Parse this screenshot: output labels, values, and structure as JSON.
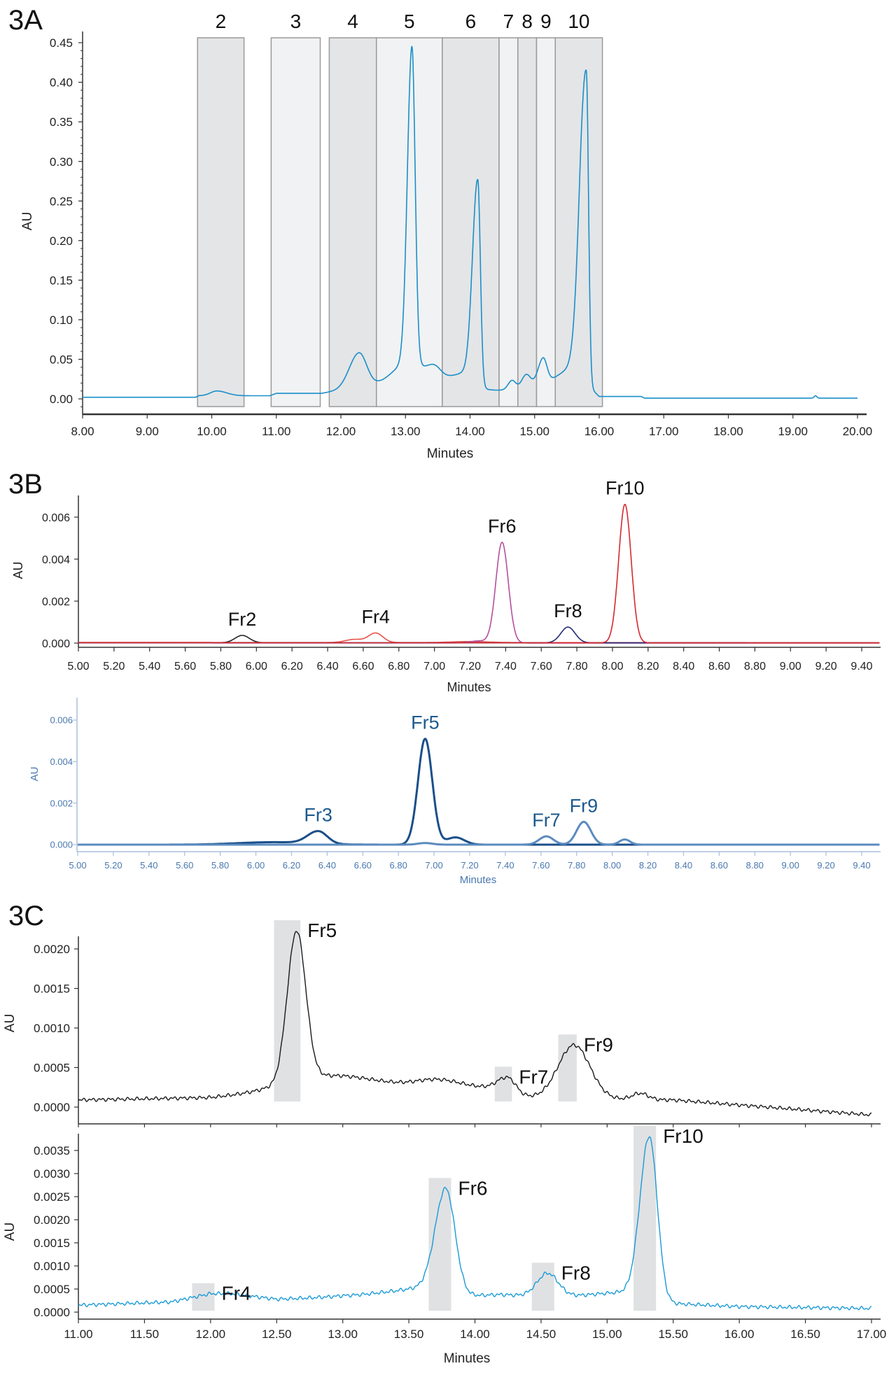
{
  "chart_data": [
    {
      "type": "line",
      "title": "3A",
      "xlabel": "Minutes",
      "ylabel": "AU",
      "xlim": [
        8,
        20
      ],
      "ylim": [
        0,
        0.45
      ],
      "xticks": [
        "8.00",
        "9.00",
        "10.00",
        "11.00",
        "12.00",
        "13.00",
        "14.00",
        "15.00",
        "16.00",
        "17.00",
        "18.00",
        "19.00",
        "20.00"
      ],
      "yticks": [
        "0.00",
        "0.05",
        "0.10",
        "0.15",
        "0.20",
        "0.25",
        "0.30",
        "0.35",
        "0.40",
        "0.45"
      ],
      "fractions": [
        {
          "label": "2",
          "range": [
            9.78,
            10.5
          ],
          "shade": "#e4e5e7"
        },
        {
          "label": "3",
          "range": [
            10.92,
            11.68
          ],
          "shade": "#f1f2f3"
        },
        {
          "label": "4",
          "range": [
            11.82,
            12.55
          ],
          "shade": "#e4e5e7"
        },
        {
          "label": "5",
          "range": [
            12.55,
            13.57
          ],
          "shade": "#f1f2f3"
        },
        {
          "label": "6",
          "range": [
            13.57,
            14.45
          ],
          "shade": "#e4e5e7"
        },
        {
          "label": "7",
          "range": [
            14.45,
            14.74
          ],
          "shade": "#f1f2f3"
        },
        {
          "label": "8",
          "range": [
            14.74,
            15.03
          ],
          "shade": "#e4e5e7"
        },
        {
          "label": "9",
          "range": [
            15.03,
            15.32
          ],
          "shade": "#f1f2f3"
        },
        {
          "label": "10",
          "range": [
            15.32,
            16.05
          ],
          "shade": "#e4e5e7"
        }
      ],
      "series": [
        {
          "color": "#1a8fc9",
          "baseline": [
            [
              8,
              0.002
            ],
            [
              9.75,
              0.002
            ],
            [
              9.8,
              0.004
            ],
            [
              10.9,
              0.004
            ],
            [
              11.0,
              0.007
            ],
            [
              11.7,
              0.007
            ],
            [
              11.85,
              0.009
            ],
            [
              12.6,
              0.016
            ],
            [
              13.5,
              0.015
            ],
            [
              14.4,
              0.011
            ],
            [
              15.9,
              0.011
            ],
            [
              16.0,
              0.003
            ],
            [
              16.65,
              0.003
            ],
            [
              16.7,
              0.001
            ],
            [
              20,
              0.001
            ]
          ],
          "peaks": [
            [
              10.08,
              0.006,
              0.1,
              0.15
            ],
            [
              12.28,
              0.045,
              0.15,
              0.12
            ],
            [
              13.1,
              0.4,
              0.07,
              0.05
            ],
            [
              13.05,
              0.03,
              0.25,
              0.3
            ],
            [
              13.45,
              0.012,
              0.1,
              0.1
            ],
            [
              14.12,
              0.255,
              0.08,
              0.04
            ],
            [
              14.0,
              0.02,
              0.3,
              0.1
            ],
            [
              14.65,
              0.012,
              0.06,
              0.06
            ],
            [
              14.87,
              0.018,
              0.07,
              0.07
            ],
            [
              15.13,
              0.033,
              0.08,
              0.06
            ],
            [
              15.8,
              0.4,
              0.1,
              0.035
            ],
            [
              15.7,
              0.03,
              0.35,
              0.05
            ],
            [
              19.35,
              0.003,
              0.02,
              0.02
            ]
          ]
        }
      ],
      "labels": []
    },
    {
      "type": "line",
      "title": "3B",
      "xlabel": "Minutes",
      "ylabel": "AU",
      "xlim": [
        5,
        9.5
      ],
      "ylim": [
        0,
        0.006
      ],
      "xticks": [
        "5.00",
        "5.20",
        "5.40",
        "5.60",
        "5.80",
        "6.00",
        "6.20",
        "6.40",
        "6.60",
        "6.80",
        "7.00",
        "7.20",
        "7.40",
        "7.60",
        "7.80",
        "8.00",
        "8.20",
        "8.40",
        "8.60",
        "8.80",
        "9.00",
        "9.20",
        "9.40"
      ],
      "yticks": [
        "0.000",
        "0.002",
        "0.004",
        "0.006"
      ],
      "fractions": [],
      "series": [
        {
          "color": "#222222",
          "baseline": [
            [
              5,
              2e-05
            ],
            [
              9.5,
              1e-05
            ]
          ],
          "peaks": [
            [
              5.92,
              0.00035,
              0.04,
              0.04
            ]
          ]
        },
        {
          "color": "#e8514a",
          "baseline": [
            [
              5,
              3e-05
            ],
            [
              9.5,
              2e-05
            ]
          ],
          "peaks": [
            [
              6.55,
              0.00015,
              0.05,
              0.05
            ],
            [
              6.67,
              0.00045,
              0.04,
              0.04
            ],
            [
              7.2,
              5e-05,
              0.1,
              0.1
            ]
          ]
        },
        {
          "color": "#b5509e",
          "baseline": [
            [
              5,
              1e-05
            ],
            [
              9.5,
              0.0
            ]
          ],
          "peaks": [
            [
              7.38,
              0.0048,
              0.035,
              0.035
            ],
            [
              7.25,
              0.0001,
              0.05,
              0.05
            ]
          ]
        },
        {
          "color": "#232c74",
          "baseline": [
            [
              5,
              2e-05
            ],
            [
              9.5,
              1e-05
            ]
          ],
          "peaks": [
            [
              7.75,
              0.00075,
              0.04,
              0.04
            ]
          ]
        },
        {
          "color": "#d42a2f",
          "baseline": [
            [
              5,
              2e-05
            ],
            [
              9.5,
              1e-05
            ]
          ],
          "peaks": [
            [
              8.07,
              0.0066,
              0.035,
              0.035
            ]
          ]
        }
      ],
      "labels": [
        {
          "text": "Fr2",
          "x": 5.92,
          "series": 0
        },
        {
          "text": "Fr4",
          "x": 6.67,
          "series": 1
        },
        {
          "text": "Fr6",
          "x": 7.38,
          "series": 2
        },
        {
          "text": "Fr8",
          "x": 7.75,
          "series": 3
        },
        {
          "text": "Fr10",
          "x": 8.07,
          "series": 4
        }
      ]
    },
    {
      "type": "line",
      "title": "",
      "xlabel": "Minutes",
      "ylabel": "AU",
      "xlim": [
        5,
        9.5
      ],
      "ylim": [
        0,
        0.006
      ],
      "xticks": [
        "5.00",
        "5.20",
        "5.40",
        "5.60",
        "5.80",
        "6.00",
        "6.20",
        "6.40",
        "6.60",
        "6.80",
        "7.00",
        "7.20",
        "7.40",
        "7.60",
        "7.80",
        "8.00",
        "8.20",
        "8.40",
        "8.60",
        "8.80",
        "9.00",
        "9.20",
        "9.40"
      ],
      "yticks": [
        "0.000",
        "0.002",
        "0.004",
        "0.006"
      ],
      "fractions": [],
      "series": [
        {
          "color": "#1b4f8a",
          "baseline": [
            [
              5,
              0.0
            ],
            [
              9.5,
              0.0
            ]
          ],
          "peaks": [
            [
              6.35,
              0.0006,
              0.06,
              0.05
            ],
            [
              6.1,
              0.00012,
              0.2,
              0.2
            ],
            [
              6.95,
              0.0051,
              0.04,
              0.04
            ],
            [
              7.12,
              0.00035,
              0.05,
              0.05
            ]
          ]
        },
        {
          "color": "#5b8bbf",
          "baseline": [
            [
              5,
              0.0
            ],
            [
              9.5,
              0.0
            ]
          ],
          "peaks": [
            [
              7.63,
              0.0004,
              0.04,
              0.04
            ],
            [
              7.84,
              0.0011,
              0.04,
              0.04
            ],
            [
              8.07,
              0.00025,
              0.03,
              0.03
            ],
            [
              6.95,
              8e-05,
              0.04,
              0.04
            ]
          ]
        }
      ],
      "labels": [
        {
          "text": "Fr3",
          "x": 6.35,
          "series": 0
        },
        {
          "text": "Fr5",
          "x": 6.95,
          "series": 0
        },
        {
          "text": "Fr7",
          "x": 7.63,
          "series": 1
        },
        {
          "text": "Fr9",
          "x": 7.84,
          "series": 1
        }
      ]
    },
    {
      "type": "line",
      "title": "3C",
      "xlabel": "",
      "ylabel": "AU",
      "xlim": [
        11,
        17
      ],
      "ylim": [
        0,
        0.002
      ],
      "xticks": [],
      "yticks": [
        "0.0000",
        "0.0005",
        "0.0010",
        "0.0015",
        "0.0020"
      ],
      "fractions": [],
      "series": [
        {
          "color": "#1a1a1a",
          "baseline": [
            [
              11,
              9e-05
            ],
            [
              12,
              0.00012
            ],
            [
              12.4,
              0.00018
            ],
            [
              13,
              0.0002
            ],
            [
              14,
              0.00012
            ],
            [
              15.5,
              9e-05
            ],
            [
              17,
              -0.0001
            ]
          ],
          "peaks": [
            [
              12.65,
              0.0019,
              0.07,
              0.07
            ],
            [
              12.9,
              0.0002,
              0.3,
              0.5
            ],
            [
              13.7,
              8e-05,
              0.15,
              0.15
            ],
            [
              14.25,
              0.0002,
              0.08,
              0.06
            ],
            [
              14.0,
              0.00012,
              0.3,
              0.2
            ],
            [
              14.75,
              0.00068,
              0.12,
              0.12
            ],
            [
              15.25,
              8e-05,
              0.06,
              0.06
            ]
          ]
        }
      ],
      "labels": [
        {
          "text": "Fr5",
          "window": [
            12.48,
            12.68
          ],
          "series": 0
        },
        {
          "text": "Fr7",
          "window": [
            14.15,
            14.28
          ],
          "series": 0
        },
        {
          "text": "Fr9",
          "window": [
            14.63,
            14.77
          ],
          "series": 0
        }
      ]
    },
    {
      "type": "line",
      "title": "",
      "xlabel": "Minutes",
      "ylabel": "AU",
      "xlim": [
        11,
        17
      ],
      "ylim": [
        0,
        0.0035
      ],
      "xticks": [
        "11.00",
        "11.50",
        "12.00",
        "12.50",
        "13.00",
        "13.50",
        "14.00",
        "14.50",
        "15.00",
        "15.50",
        "16.00",
        "16.50",
        "17.00"
      ],
      "yticks": [
        "0.0000",
        "0.0005",
        "0.0010",
        "0.0015",
        "0.0020",
        "0.0025",
        "0.0030",
        "0.0035"
      ],
      "fractions": [],
      "series": [
        {
          "color": "#1a9ad6",
          "baseline": [
            [
              11,
              0.00015
            ],
            [
              11.7,
              0.00022
            ],
            [
              12.0,
              0.0004
            ],
            [
              12.15,
              0.0004
            ],
            [
              12.5,
              0.00028
            ],
            [
              13,
              0.00033
            ],
            [
              13.4,
              0.0003
            ],
            [
              14.2,
              0.00038
            ],
            [
              15,
              0.00025
            ],
            [
              16,
              0.00012
            ],
            [
              17,
              8e-05
            ]
          ],
          "peaks": [
            [
              13.78,
              0.0023,
              0.08,
              0.07
            ],
            [
              13.6,
              0.0002,
              0.3,
              0.1
            ],
            [
              14.55,
              0.0005,
              0.08,
              0.08
            ],
            [
              15.32,
              0.0035,
              0.07,
              0.06
            ],
            [
              15.2,
              0.0002,
              0.3,
              0.1
            ]
          ]
        }
      ],
      "labels": [
        {
          "text": "Fr4",
          "window": [
            11.86,
            12.03
          ],
          "series": 0
        },
        {
          "text": "Fr6",
          "window": [
            13.65,
            13.82
          ],
          "series": 0
        },
        {
          "text": "Fr8",
          "window": [
            14.43,
            14.6
          ],
          "series": 0
        },
        {
          "text": "Fr10",
          "window": [
            15.2,
            15.37
          ],
          "series": 0
        }
      ]
    }
  ]
}
